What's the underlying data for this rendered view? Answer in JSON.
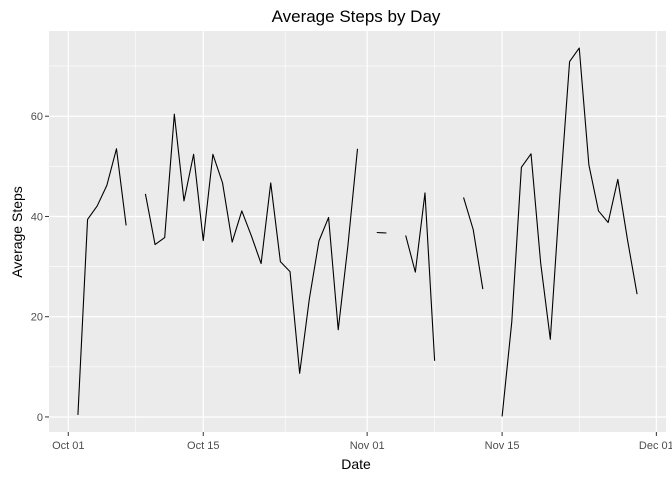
{
  "chart_data": {
    "type": "line",
    "title": "Average Steps by Day",
    "xlabel": "Date",
    "ylabel": "Average Steps",
    "x_ticks": [
      {
        "date": "2012-10-01",
        "label": "Oct 01"
      },
      {
        "date": "2012-10-15",
        "label": "Oct 15"
      },
      {
        "date": "2012-11-01",
        "label": "Nov 01"
      },
      {
        "date": "2012-11-15",
        "label": "Nov 15"
      },
      {
        "date": "2012-12-01",
        "label": "Dec 01"
      }
    ],
    "y_ticks": [
      0,
      20,
      40,
      60
    ],
    "xlim": [
      "2012-09-29",
      "2012-12-02"
    ],
    "ylim": [
      -3,
      77
    ],
    "grid": true,
    "legend": "none",
    "colors": {
      "panel": "#ebebeb",
      "grid": "#ffffff",
      "line": "#000000",
      "tick_text": "#4d4d4d"
    },
    "series": [
      {
        "x": [
          "2012-10-01",
          "2012-10-02",
          "2012-10-03",
          "2012-10-04",
          "2012-10-05",
          "2012-10-06",
          "2012-10-07",
          "2012-10-08",
          "2012-10-09",
          "2012-10-10",
          "2012-10-11",
          "2012-10-12",
          "2012-10-13",
          "2012-10-14",
          "2012-10-15",
          "2012-10-16",
          "2012-10-17",
          "2012-10-18",
          "2012-10-19",
          "2012-10-20",
          "2012-10-21",
          "2012-10-22",
          "2012-10-23",
          "2012-10-24",
          "2012-10-25",
          "2012-10-26",
          "2012-10-27",
          "2012-10-28",
          "2012-10-29",
          "2012-10-30",
          "2012-10-31",
          "2012-11-01",
          "2012-11-02",
          "2012-11-03",
          "2012-11-04",
          "2012-11-05",
          "2012-11-06",
          "2012-11-07",
          "2012-11-08",
          "2012-11-09",
          "2012-11-10",
          "2012-11-11",
          "2012-11-12",
          "2012-11-13",
          "2012-11-14",
          "2012-11-15",
          "2012-11-16",
          "2012-11-17",
          "2012-11-18",
          "2012-11-19",
          "2012-11-20",
          "2012-11-21",
          "2012-11-22",
          "2012-11-23",
          "2012-11-24",
          "2012-11-25",
          "2012-11-26",
          "2012-11-27",
          "2012-11-28",
          "2012-11-29",
          "2012-11-30"
        ],
        "values": [
          null,
          0.4,
          39.4,
          42.1,
          46.2,
          53.5,
          38.2,
          null,
          44.5,
          34.4,
          35.8,
          60.4,
          43.1,
          52.4,
          35.2,
          52.4,
          46.7,
          34.9,
          41.1,
          36.1,
          30.6,
          46.7,
          31.0,
          29.0,
          8.7,
          23.5,
          35.1,
          39.8,
          17.4,
          34.1,
          53.5,
          null,
          36.8,
          36.7,
          null,
          36.2,
          28.9,
          44.7,
          11.2,
          null,
          null,
          43.8,
          37.4,
          25.5,
          null,
          0.1,
          18.9,
          49.8,
          52.5,
          30.7,
          15.5,
          44.4,
          70.9,
          73.6,
          50.3,
          41.1,
          38.8,
          47.4,
          35.4,
          24.5,
          null
        ]
      }
    ]
  }
}
